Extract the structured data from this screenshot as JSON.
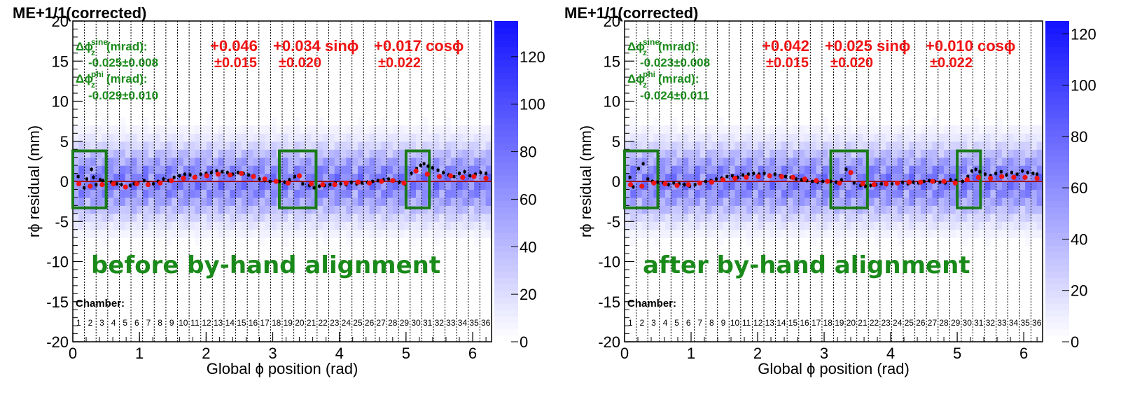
{
  "chart_data": [
    {
      "type": "scatter",
      "title": "ME+1/1(corrected)",
      "xlabel": "Global ϕ position (rad)",
      "ylabel": "rϕ residual (mm)",
      "xlim": [
        0,
        6.2832
      ],
      "ylim": [
        -20,
        20
      ],
      "x_ticks": [
        "0",
        "1",
        "2",
        "3",
        "4",
        "5",
        "6"
      ],
      "y_ticks": [
        "-20",
        "-15",
        "-10",
        "-5",
        "0",
        "5",
        "10",
        "15",
        "20"
      ],
      "colorbar_ticks": [
        "0",
        "20",
        "40",
        "60",
        "80",
        "100",
        "120"
      ],
      "colorbar_range": [
        0,
        135
      ],
      "overlay_label": "before by-hand alignment",
      "fit_text": {
        "dphi_sine_label": "Δϕ",
        "dphi_sine_sup": "sine",
        "dphi_sine_sub": "z",
        "dphi_sine_units": " (mrad):",
        "dphi_sine_value": "-0.025±0.008",
        "dphi_phi_label": "Δϕ",
        "dphi_phi_sup": "phi",
        "dphi_phi_sub": "z",
        "dphi_phi_units": " (mrad):",
        "dphi_phi_value": "-0.029±0.010",
        "const": "+0.046",
        "sin_term": "+0.034 sinϕ",
        "cos_term": "+0.017 cosϕ",
        "const_err": "±0.015",
        "sin_err": "±0.020",
        "cos_err": "±0.022"
      },
      "chamber_label": "Chamber:",
      "chambers": [
        "1",
        "2",
        "3",
        "4",
        "5",
        "6",
        "7",
        "8",
        "9",
        "10",
        "11",
        "12",
        "13",
        "14",
        "15",
        "16",
        "17",
        "18",
        "19",
        "20",
        "21",
        "22",
        "23",
        "24",
        "25",
        "26",
        "27",
        "28",
        "29",
        "30",
        "31",
        "32",
        "33",
        "34",
        "35",
        "36"
      ],
      "highlight_boxes_x": [
        [
          0.0,
          0.5
        ],
        [
          3.1,
          3.65
        ],
        [
          5.0,
          5.35
        ]
      ],
      "highlight_boxes_y": [
        -3.3,
        3.8
      ],
      "fit_line_y": 0,
      "series": [
        {
          "role": "profile",
          "color": "#000000",
          "x": [
            0.08,
            0.17,
            0.21,
            0.28,
            0.31,
            0.35,
            0.41,
            0.45,
            0.58,
            0.66,
            0.73,
            0.79,
            0.86,
            0.92,
            0.98,
            1.07,
            1.13,
            1.21,
            1.28,
            1.36,
            1.44,
            1.52,
            1.6,
            1.68,
            1.76,
            1.84,
            1.92,
            2.0,
            2.08,
            2.16,
            2.24,
            2.32,
            2.4,
            2.48,
            2.56,
            2.64,
            2.72,
            2.8,
            2.88,
            2.96,
            3.1,
            3.18,
            3.25,
            3.33,
            3.45,
            3.55,
            3.62,
            3.7,
            3.78,
            3.86,
            3.94,
            4.02,
            4.1,
            4.18,
            4.26,
            4.34,
            4.42,
            4.5,
            4.58,
            4.66,
            4.74,
            4.82,
            4.9,
            4.98,
            5.08,
            5.16,
            5.22,
            5.27,
            5.33,
            5.4,
            5.48,
            5.56,
            5.64,
            5.72,
            5.8,
            5.88,
            5.96,
            6.04,
            6.12,
            6.2
          ],
          "y": [
            0.6,
            -0.8,
            0.3,
            1.5,
            0.5,
            -0.4,
            0.2,
            0.1,
            -0.1,
            -0.3,
            -0.4,
            -0.7,
            -0.5,
            -0.3,
            -0.2,
            0.1,
            -0.2,
            -0.3,
            0.0,
            0.3,
            0.1,
            0.5,
            0.7,
            0.9,
            0.8,
            0.6,
            0.9,
            1.0,
            1.1,
            1.3,
            1.2,
            1.1,
            0.9,
            1.1,
            1.0,
            0.8,
            0.7,
            0.3,
            0.1,
            0.0,
            0.0,
            -0.1,
            0.2,
            0.6,
            -0.3,
            -0.5,
            -0.8,
            -0.6,
            -0.5,
            -0.4,
            -0.2,
            -0.3,
            -0.4,
            -0.1,
            -0.3,
            -0.2,
            -0.1,
            0.0,
            0.1,
            0.2,
            0.3,
            0.1,
            -0.1,
            -0.3,
            1.0,
            1.6,
            2.0,
            2.2,
            1.9,
            1.7,
            1.4,
            1.1,
            0.8,
            0.6,
            1.0,
            1.2,
            0.7,
            0.9,
            1.1,
            1.0
          ]
        },
        {
          "role": "chamber-mean",
          "color": "#f01414",
          "x": [
            0.09,
            0.26,
            0.44,
            0.61,
            0.79,
            0.96,
            1.13,
            1.31,
            1.48,
            1.66,
            1.83,
            2.01,
            2.18,
            2.36,
            2.53,
            2.71,
            2.88,
            3.05,
            3.23,
            3.4,
            3.58,
            3.75,
            3.93,
            4.1,
            4.28,
            4.45,
            4.63,
            4.8,
            4.97,
            5.15,
            5.32,
            5.5,
            5.67,
            5.85,
            6.02,
            6.2
          ],
          "y": [
            -0.3,
            -0.6,
            -0.4,
            -0.3,
            -0.7,
            -0.3,
            -0.4,
            -0.2,
            0.1,
            0.4,
            0.5,
            0.7,
            0.9,
            0.8,
            1.0,
            0.6,
            0.3,
            0.0,
            -0.2,
            0.7,
            -0.3,
            -0.4,
            -0.4,
            -0.2,
            -0.1,
            -0.2,
            0.0,
            0.1,
            -0.2,
            1.3,
            0.9,
            0.6,
            0.7,
            0.5,
            0.6,
            0.4
          ]
        }
      ]
    },
    {
      "type": "scatter",
      "title": "ME+1/1(corrected)",
      "xlabel": "Global ϕ position (rad)",
      "ylabel": "rϕ residual (mm)",
      "xlim": [
        0,
        6.2832
      ],
      "ylim": [
        -20,
        20
      ],
      "x_ticks": [
        "0",
        "1",
        "2",
        "3",
        "4",
        "5",
        "6"
      ],
      "y_ticks": [
        "-20",
        "-15",
        "-10",
        "-5",
        "0",
        "5",
        "10",
        "15",
        "20"
      ],
      "colorbar_ticks": [
        "0",
        "20",
        "40",
        "60",
        "80",
        "100",
        "120"
      ],
      "colorbar_range": [
        0,
        125
      ],
      "overlay_label": "after by-hand alignment",
      "fit_text": {
        "dphi_sine_label": "Δϕ",
        "dphi_sine_sup": "sine",
        "dphi_sine_sub": "z",
        "dphi_sine_units": " (mrad):",
        "dphi_sine_value": "-0.023±0.008",
        "dphi_phi_label": "Δϕ",
        "dphi_phi_sup": "phi",
        "dphi_phi_sub": "z",
        "dphi_phi_units": " (mrad):",
        "dphi_phi_value": "-0.024±0.011",
        "const": "+0.042",
        "sin_term": "+0.025 sinϕ",
        "cos_term": "+0.010 cosϕ",
        "const_err": "±0.015",
        "sin_err": "±0.020",
        "cos_err": "±0.022"
      },
      "chamber_label": "Chamber:",
      "chambers": [
        "1",
        "2",
        "3",
        "4",
        "5",
        "6",
        "7",
        "8",
        "9",
        "10",
        "11",
        "12",
        "13",
        "14",
        "15",
        "16",
        "17",
        "18",
        "19",
        "20",
        "21",
        "22",
        "23",
        "24",
        "25",
        "26",
        "27",
        "28",
        "29",
        "30",
        "31",
        "32",
        "33",
        "34",
        "35",
        "36"
      ],
      "highlight_boxes_x": [
        [
          0.0,
          0.5
        ],
        [
          3.1,
          3.65
        ],
        [
          5.0,
          5.35
        ]
      ],
      "highlight_boxes_y": [
        -3.3,
        3.8
      ],
      "fit_line_y": 0,
      "series": [
        {
          "role": "profile",
          "color": "#000000",
          "x": [
            0.08,
            0.13,
            0.21,
            0.28,
            0.35,
            0.42,
            0.5,
            0.58,
            0.66,
            0.74,
            0.82,
            0.9,
            0.98,
            1.06,
            1.14,
            1.22,
            1.3,
            1.38,
            1.46,
            1.54,
            1.62,
            1.7,
            1.78,
            1.86,
            1.94,
            2.02,
            2.1,
            2.18,
            2.26,
            2.34,
            2.42,
            2.5,
            2.58,
            2.66,
            2.74,
            2.82,
            2.9,
            2.98,
            3.1,
            3.18,
            3.26,
            3.33,
            3.45,
            3.55,
            3.62,
            3.7,
            3.78,
            3.86,
            3.94,
            4.02,
            4.1,
            4.18,
            4.26,
            4.34,
            4.42,
            4.5,
            4.58,
            4.66,
            4.74,
            4.82,
            4.9,
            4.98,
            5.08,
            5.16,
            5.22,
            5.28,
            5.34,
            5.42,
            5.5,
            5.58,
            5.66,
            5.74,
            5.82,
            5.9,
            5.98,
            6.06,
            6.14,
            6.2
          ],
          "y": [
            0.5,
            -0.7,
            1.6,
            2.2,
            0.3,
            0.0,
            -0.1,
            -0.2,
            -0.4,
            -0.2,
            -0.3,
            -0.4,
            -0.6,
            -0.4,
            -0.2,
            0.0,
            0.1,
            0.3,
            0.4,
            0.6,
            0.7,
            0.5,
            0.8,
            0.9,
            1.0,
            0.9,
            1.0,
            0.8,
            0.9,
            0.7,
            0.6,
            0.5,
            0.3,
            0.2,
            0.1,
            0.0,
            -0.1,
            0.0,
            0.0,
            -0.1,
            0.2,
            1.5,
            -0.2,
            -0.5,
            -0.6,
            -0.5,
            -0.4,
            -0.3,
            -0.4,
            -0.3,
            -0.2,
            -0.1,
            -0.3,
            -0.1,
            -0.2,
            0.0,
            0.1,
            0.0,
            -0.1,
            -0.2,
            0.2,
            0.1,
            0.0,
            0.6,
            1.3,
            1.5,
            1.2,
            0.9,
            0.7,
            1.0,
            1.2,
            0.8,
            1.1,
            0.9,
            1.3,
            1.1,
            1.0,
            0.9
          ]
        },
        {
          "role": "chamber-mean",
          "color": "#f01414",
          "x": [
            0.09,
            0.26,
            0.44,
            0.61,
            0.79,
            0.96,
            1.13,
            1.31,
            1.48,
            1.66,
            1.83,
            2.01,
            2.18,
            2.36,
            2.53,
            2.71,
            2.88,
            3.05,
            3.23,
            3.4,
            3.58,
            3.75,
            3.93,
            4.1,
            4.28,
            4.45,
            4.63,
            4.8,
            4.97,
            5.15,
            5.32,
            5.5,
            5.67,
            5.85,
            6.02,
            6.2
          ],
          "y": [
            -0.4,
            -0.6,
            -0.2,
            -0.3,
            -0.5,
            -0.4,
            -0.2,
            -0.1,
            0.2,
            0.4,
            0.5,
            0.6,
            0.7,
            0.6,
            0.5,
            0.3,
            0.1,
            0.0,
            -0.2,
            1.1,
            -0.3,
            -0.4,
            -0.3,
            -0.2,
            -0.1,
            -0.1,
            0.0,
            0.0,
            -0.2,
            0.2,
            0.5,
            0.4,
            0.6,
            0.5,
            0.5,
            0.4
          ]
        }
      ]
    }
  ]
}
